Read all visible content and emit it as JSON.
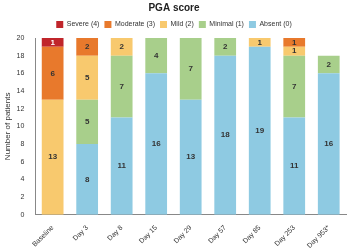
{
  "chart_data": {
    "type": "bar",
    "title": "PGA score",
    "categories": [
      "Baseline",
      "Day 3",
      "Day 8",
      "Day 15",
      "Day 29",
      "Day 57",
      "Day 85",
      "Day 253",
      "Day 953*"
    ],
    "series": [
      {
        "name": "Absent (0)",
        "color": "#8ecae2",
        "values": [
          0,
          8,
          11,
          16,
          13,
          18,
          19,
          11,
          16
        ]
      },
      {
        "name": "Minimal (1)",
        "color": "#a8cf8b",
        "values": [
          0,
          5,
          7,
          4,
          7,
          2,
          0,
          7,
          2
        ]
      },
      {
        "name": "Mild (2)",
        "color": "#f8c96e",
        "values": [
          13,
          5,
          2,
          0,
          0,
          0,
          1,
          1,
          0
        ]
      },
      {
        "name": "Moderate (3)",
        "color": "#e8792c",
        "values": [
          6,
          2,
          0,
          0,
          0,
          0,
          0,
          1,
          0
        ]
      },
      {
        "name": "Severe (4)",
        "color": "#c0252b",
        "values": [
          1,
          0,
          0,
          0,
          0,
          0,
          0,
          0,
          0
        ]
      }
    ],
    "y_label": "Number of patients",
    "ylim": [
      0,
      20
    ],
    "yticks": [
      0,
      2,
      4,
      6,
      8,
      10,
      12,
      14,
      16,
      18,
      20
    ],
    "stacked": true,
    "data_labels": true,
    "legend": "top",
    "grid": false
  }
}
